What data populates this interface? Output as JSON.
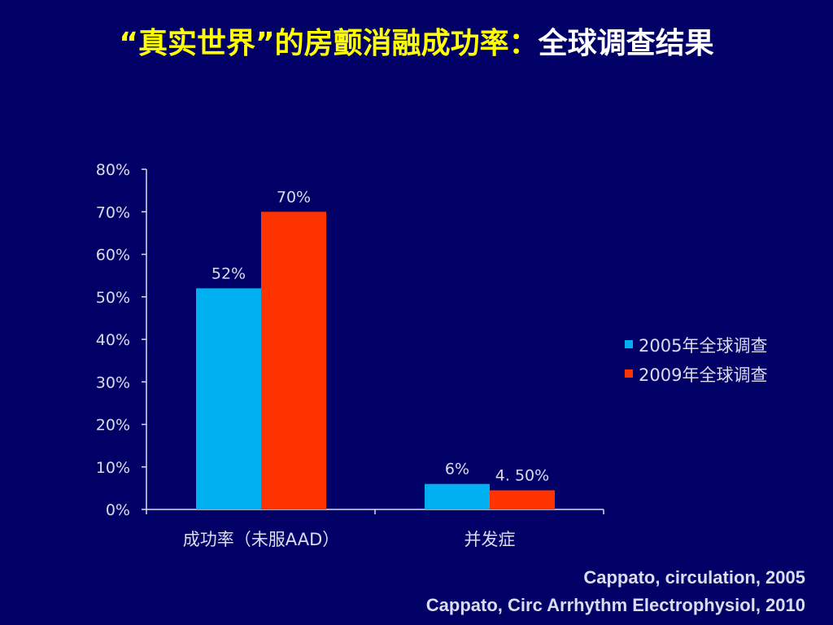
{
  "slide": {
    "title_highlight": "“真实世界”的房颤消融成功率：",
    "title_rest": "全球调查结果",
    "citations": [
      "Cappato, circulation, 2005",
      "Cappato, Circ Arrhythm Electrophysiol, 2010"
    ]
  },
  "colors": {
    "background": "#000066",
    "title_highlight": "#ffff00",
    "title_rest": "#ffffff",
    "axis_text": "#dcdcf0",
    "series_2005": "#00b0f0",
    "series_2009": "#ff3300"
  },
  "chart_data": {
    "type": "bar",
    "categories": [
      "成功率（未服AAD）",
      "并发症"
    ],
    "series": [
      {
        "name": "2005年全球调查",
        "values": [
          52,
          6
        ],
        "labels": [
          "52%",
          "6%"
        ],
        "color": "#00b0f0"
      },
      {
        "name": "2009年全球调查",
        "values": [
          70,
          4.5
        ],
        "labels": [
          "70%",
          "4. 50%"
        ],
        "color": "#ff3300"
      }
    ],
    "ylim": [
      0,
      80
    ],
    "yticks": [
      0,
      10,
      20,
      30,
      40,
      50,
      60,
      70,
      80
    ],
    "ytick_labels": [
      "0%",
      "10%",
      "20%",
      "30%",
      "40%",
      "50%",
      "60%",
      "70%",
      "80%"
    ],
    "legend_position": "right",
    "grid": false
  }
}
